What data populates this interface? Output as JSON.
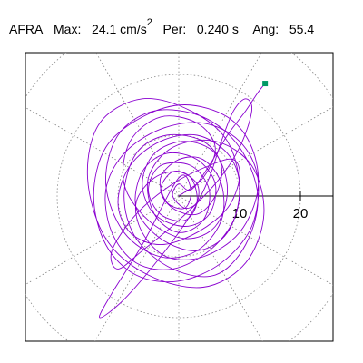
{
  "header": {
    "station": "AFRA",
    "max_label": "Max:",
    "max_value": "24.1 cm/s",
    "max_exp": "2",
    "per_label": "Per:",
    "per_value": "0.240 s",
    "ang_label": "Ang:",
    "ang_value": "55.4"
  },
  "chart_data": {
    "type": "line",
    "title": "AFRA  Max: 24.1 cm/s 2  Per: 0.240 s  Ang: 55.4",
    "xlabel": "",
    "ylabel": "",
    "x_ticks": [
      {
        "value": 10,
        "label": "10"
      },
      {
        "value": 20,
        "label": "20"
      }
    ],
    "ring_radii": [
      10,
      20,
      30
    ],
    "polar_grid": true,
    "xlim": [
      -25,
      25
    ],
    "ylim": [
      -24,
      24
    ],
    "units": "cm/s2",
    "series_color": "#8a00d0",
    "grid_color": "#888888",
    "marker_color": "#009966",
    "end_marker": {
      "x": 14.2,
      "y": 18.5
    },
    "trace": [
      [
        0,
        0
      ],
      [
        4,
        3
      ],
      [
        6,
        8
      ],
      [
        3,
        12
      ],
      [
        -3,
        13
      ],
      [
        -8,
        9
      ],
      [
        -9,
        2
      ],
      [
        -5,
        -4
      ],
      [
        1,
        -7
      ],
      [
        6,
        -5
      ],
      [
        8,
        1
      ],
      [
        6,
        7
      ],
      [
        1,
        9
      ],
      [
        -4,
        7
      ],
      [
        -6,
        2
      ],
      [
        -4,
        -3
      ],
      [
        1,
        -5
      ],
      [
        5,
        -3
      ],
      [
        6,
        2
      ],
      [
        3,
        6
      ],
      [
        -2,
        7
      ],
      [
        -6,
        4
      ],
      [
        -7,
        -2
      ],
      [
        -3,
        -7
      ],
      [
        3,
        -9
      ],
      [
        8,
        -6
      ],
      [
        10,
        1
      ],
      [
        8,
        9
      ],
      [
        2,
        14
      ],
      [
        -6,
        16
      ],
      [
        -13,
        12
      ],
      [
        -15,
        3
      ],
      [
        -12,
        -7
      ],
      [
        -5,
        -13
      ],
      [
        4,
        -15
      ],
      [
        11,
        -11
      ],
      [
        14,
        -3
      ],
      [
        12,
        5
      ],
      [
        6,
        9
      ],
      [
        -1,
        8
      ],
      [
        -5,
        3
      ],
      [
        -4,
        -3
      ],
      [
        0,
        -6
      ],
      [
        4,
        -4
      ],
      [
        5,
        1
      ],
      [
        2,
        5
      ],
      [
        -3,
        5
      ],
      [
        -5,
        1
      ],
      [
        -3,
        -3
      ],
      [
        1,
        -4
      ],
      [
        3,
        -1
      ],
      [
        2,
        3
      ],
      [
        -1,
        4
      ],
      [
        -3,
        1
      ],
      [
        -1,
        -2
      ],
      [
        3,
        -3
      ],
      [
        6,
        0
      ],
      [
        7,
        5
      ],
      [
        4,
        9
      ],
      [
        -2,
        10
      ],
      [
        -7,
        7
      ],
      [
        -9,
        0
      ],
      [
        -7,
        -7
      ],
      [
        -1,
        -12
      ],
      [
        6,
        -13
      ],
      [
        11,
        -8
      ],
      [
        13,
        0
      ],
      [
        10,
        8
      ],
      [
        4,
        13
      ],
      [
        -4,
        14
      ],
      [
        -10,
        10
      ],
      [
        -12,
        2
      ],
      [
        -9,
        -6
      ],
      [
        -3,
        -10
      ],
      [
        3,
        -9
      ],
      [
        7,
        -4
      ],
      [
        7,
        2
      ],
      [
        4,
        6
      ],
      [
        0,
        6
      ],
      [
        -3,
        3
      ],
      [
        -2,
        -1
      ],
      [
        1,
        -2
      ],
      [
        2,
        1
      ],
      [
        0,
        3
      ],
      [
        -6,
        -8
      ],
      [
        -11,
        -16
      ],
      [
        -13,
        -20
      ],
      [
        -9,
        -17
      ],
      [
        -3,
        -10
      ],
      [
        2,
        -3
      ],
      [
        5,
        3
      ],
      [
        7,
        9
      ],
      [
        9,
        14
      ],
      [
        11,
        16
      ],
      [
        12,
        14
      ],
      [
        10,
        8
      ],
      [
        6,
        2
      ],
      [
        0,
        -4
      ],
      [
        -6,
        -9
      ],
      [
        -10,
        -12
      ],
      [
        -11,
        -9
      ],
      [
        -7,
        -3
      ],
      [
        -1,
        2
      ],
      [
        5,
        5
      ],
      [
        9,
        6
      ],
      [
        10,
        3
      ],
      [
        8,
        -2
      ],
      [
        3,
        -6
      ],
      [
        -3,
        -8
      ],
      [
        -8,
        -6
      ],
      [
        -10,
        -1
      ],
      [
        -8,
        5
      ],
      [
        -3,
        9
      ],
      [
        3,
        10
      ],
      [
        8,
        7
      ],
      [
        10,
        2
      ],
      [
        9,
        -4
      ],
      [
        5,
        -9
      ],
      [
        -1,
        -12
      ],
      [
        -7,
        -11
      ],
      [
        -11,
        -6
      ],
      [
        -12,
        1
      ],
      [
        -9,
        7
      ],
      [
        -3,
        11
      ],
      [
        4,
        12
      ],
      [
        10,
        9
      ],
      [
        13,
        3
      ],
      [
        12,
        -5
      ],
      [
        7,
        -11
      ],
      [
        0,
        -14
      ],
      [
        -7,
        -13
      ],
      [
        -12,
        -8
      ],
      [
        -14,
        0
      ],
      [
        -12,
        8
      ],
      [
        -6,
        13
      ],
      [
        1,
        15
      ],
      [
        8,
        13
      ],
      [
        12,
        8
      ],
      [
        13,
        1
      ],
      [
        10,
        -6
      ],
      [
        4,
        -10
      ],
      [
        -2,
        -10
      ],
      [
        -6,
        -6
      ],
      [
        -7,
        -1
      ],
      [
        -4,
        3
      ],
      [
        0,
        4
      ],
      [
        3,
        2
      ],
      [
        3,
        -1
      ],
      [
        1,
        -2
      ],
      [
        -1,
        0
      ],
      [
        0,
        2
      ],
      [
        2,
        1
      ],
      [
        5,
        5
      ],
      [
        8,
        10
      ],
      [
        11,
        14
      ],
      [
        13,
        17
      ],
      [
        14.2,
        18.5
      ]
    ]
  }
}
